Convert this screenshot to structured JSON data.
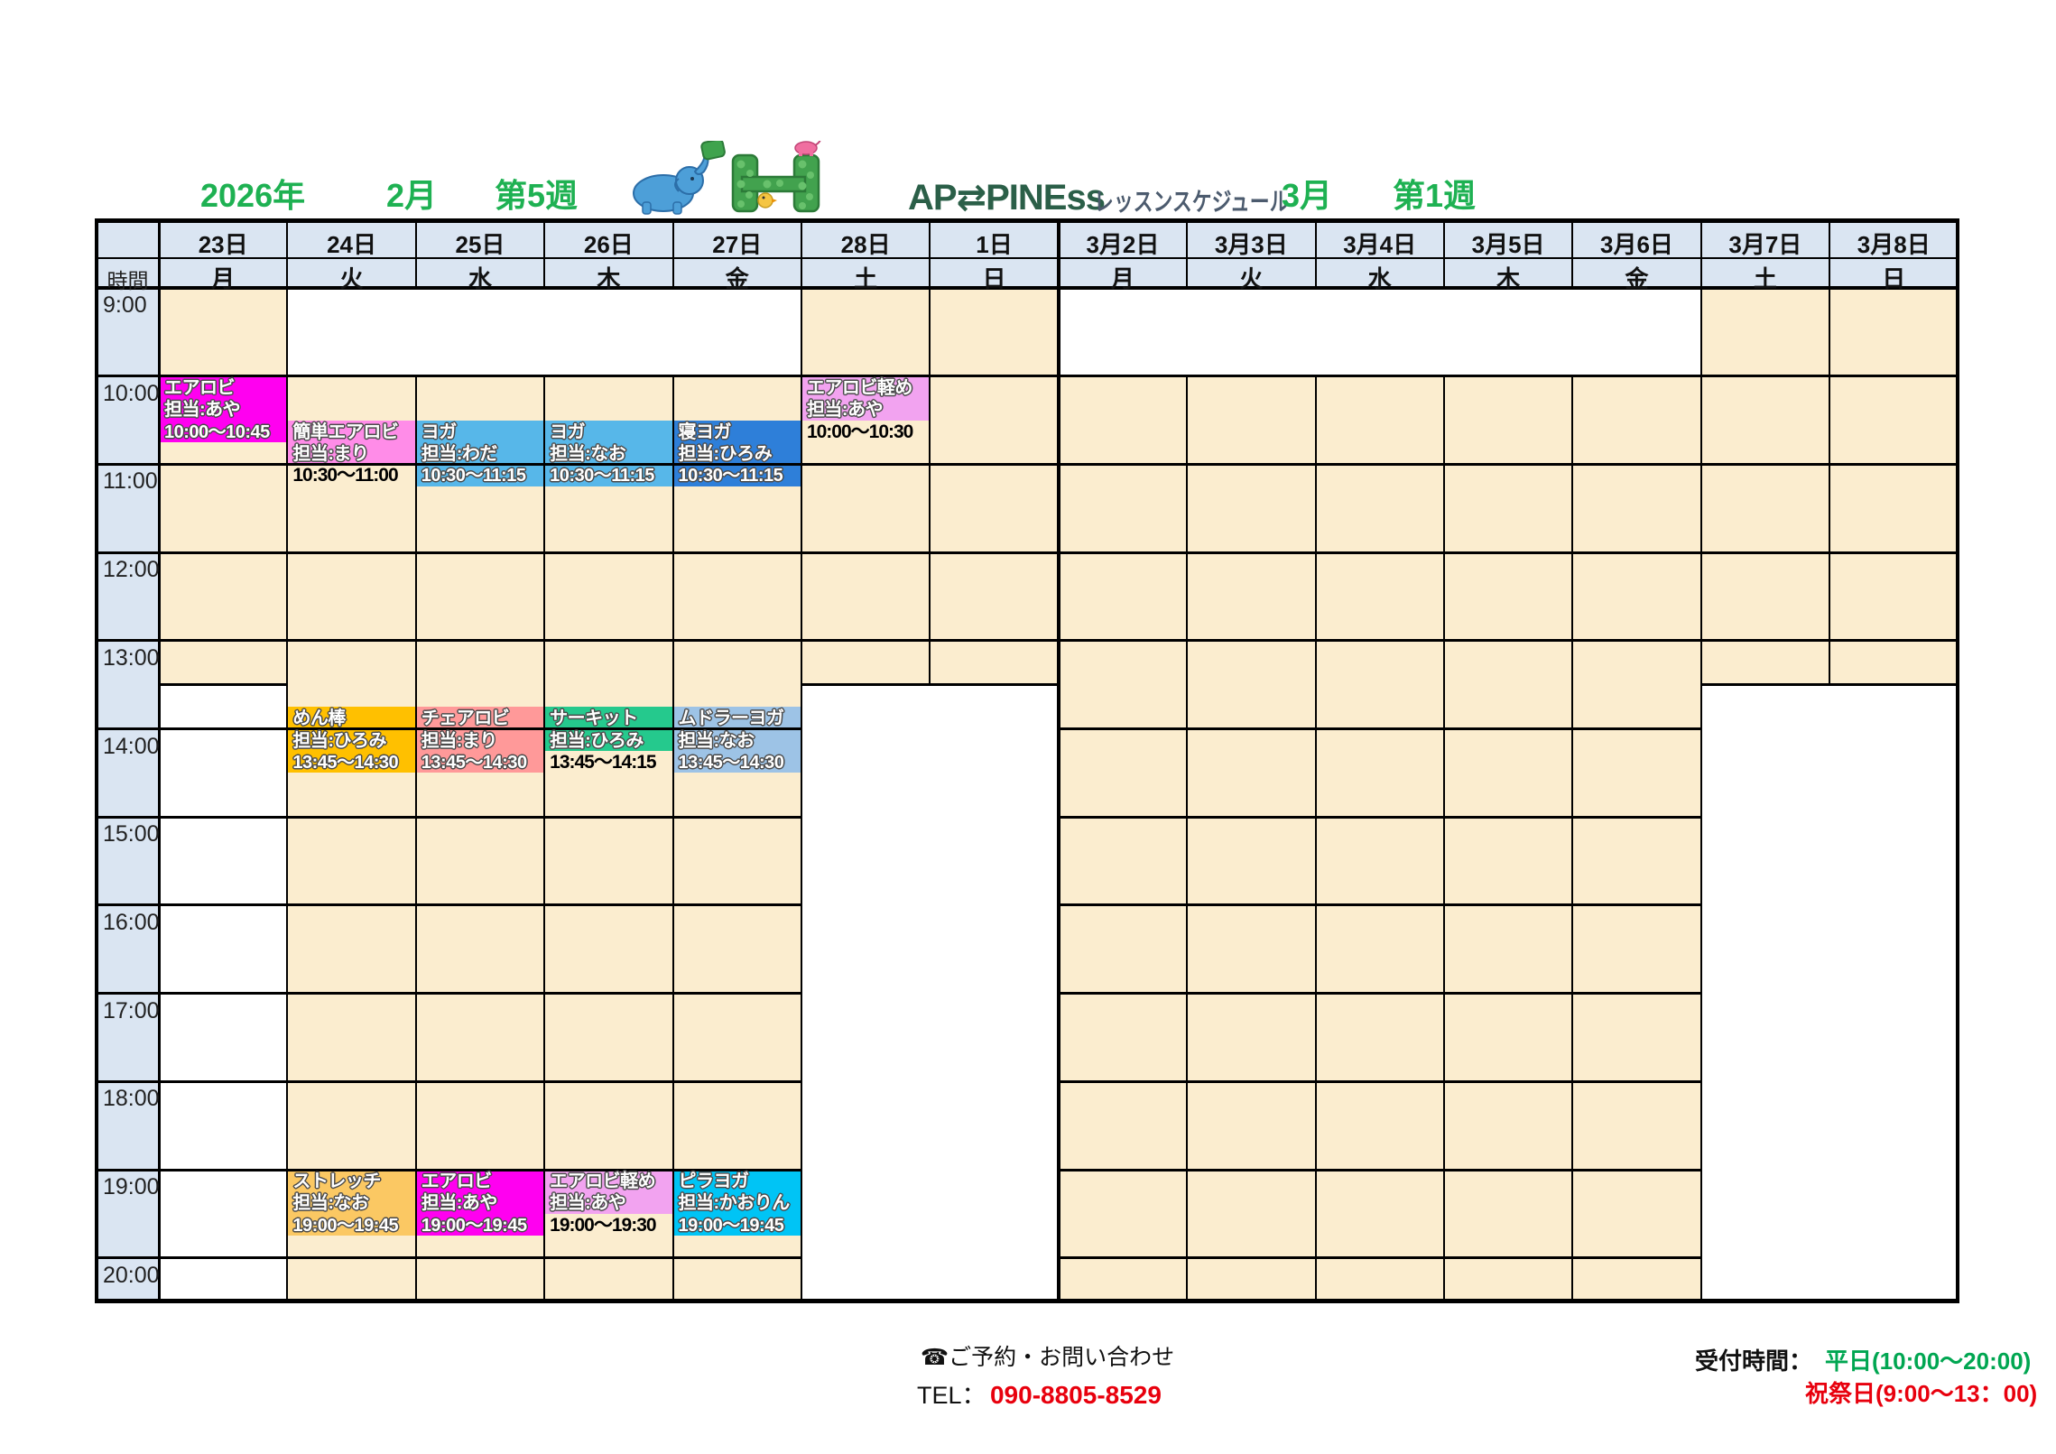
{
  "title": {
    "year": "2026年",
    "month_left": "2月",
    "week_left": "第5週",
    "logo_text": "AP⇄PINEss",
    "logo_subtitle": "レッスンスケジュール",
    "month_right": "3月",
    "week_right": "第1週"
  },
  "table": {
    "time_header": "時間",
    "hours": [
      "9:00",
      "10:00",
      "11:00",
      "12:00",
      "13:00",
      "14:00",
      "15:00",
      "16:00",
      "17:00",
      "18:00",
      "19:00",
      "20:00"
    ],
    "columns": [
      {
        "date": "23日",
        "day": "月",
        "pattern": "am"
      },
      {
        "date": "24日",
        "day": "火",
        "pattern": "pm"
      },
      {
        "date": "25日",
        "day": "水",
        "pattern": "pm"
      },
      {
        "date": "26日",
        "day": "木",
        "pattern": "pm"
      },
      {
        "date": "27日",
        "day": "金",
        "pattern": "pm"
      },
      {
        "date": "28日",
        "day": "土",
        "pattern": "am"
      },
      {
        "date": "1日",
        "day": "日",
        "pattern": "am"
      },
      {
        "date": "3月2日",
        "day": "月",
        "pattern": "pm"
      },
      {
        "date": "3月3日",
        "day": "火",
        "pattern": "pm"
      },
      {
        "date": "3月4日",
        "day": "水",
        "pattern": "pm"
      },
      {
        "date": "3月5日",
        "day": "木",
        "pattern": "pm"
      },
      {
        "date": "3月6日",
        "day": "金",
        "pattern": "pm"
      },
      {
        "date": "3月7日",
        "day": "土",
        "pattern": "am"
      },
      {
        "date": "3月8日",
        "day": "日",
        "pattern": "am"
      }
    ]
  },
  "lessons": [
    {
      "col": 0,
      "name": "エアロビ",
      "instructor": "担当:あや",
      "time": "10:00～10:45",
      "start": 60,
      "duration": 45,
      "color": "#FF00F0",
      "time_placement": "inside"
    },
    {
      "col": 1,
      "name": "簡単エアロビ",
      "instructor": "担当:まり",
      "time": "10:30～11:00",
      "start": 90,
      "duration": 30,
      "color": "#FF8CE8",
      "time_placement": "below"
    },
    {
      "col": 2,
      "name": "ヨガ",
      "instructor": "担当:わだ",
      "time": "10:30～11:15",
      "start": 90,
      "duration": 45,
      "color": "#57B7E9",
      "time_placement": "inside"
    },
    {
      "col": 3,
      "name": "ヨガ",
      "instructor": "担当:なお",
      "time": "10:30～11:15",
      "start": 90,
      "duration": 45,
      "color": "#57B7E9",
      "time_placement": "inside"
    },
    {
      "col": 4,
      "name": "寝ヨガ",
      "instructor": "担当:ひろみ",
      "time": "10:30～11:15",
      "start": 90,
      "duration": 45,
      "color": "#2E7FD9",
      "time_placement": "inside"
    },
    {
      "col": 5,
      "name": "エアロビ軽め",
      "instructor": "担当:あや",
      "time": "10:00～10:30",
      "start": 60,
      "duration": 30,
      "color": "#F2A3F0",
      "time_placement": "below"
    },
    {
      "col": 1,
      "name": "めん棒",
      "instructor": "担当:ひろみ",
      "time": "13:45～14:30",
      "start": 285,
      "duration": 45,
      "color": "#FFC000",
      "time_placement": "inside"
    },
    {
      "col": 2,
      "name": "チェアロビ",
      "instructor": "担当:まり",
      "time": "13:45～14:30",
      "start": 285,
      "duration": 45,
      "color": "#FF9999",
      "time_placement": "inside"
    },
    {
      "col": 3,
      "name": "サーキット",
      "instructor": "担当:ひろみ",
      "time": "13:45～14:15",
      "start": 285,
      "duration": 30,
      "color": "#25C98D",
      "time_placement": "below"
    },
    {
      "col": 4,
      "name": "ムドラーヨガ",
      "instructor": "担当:なお",
      "time": "13:45～14:30",
      "start": 285,
      "duration": 45,
      "color": "#9DC3E6",
      "time_placement": "inside"
    },
    {
      "col": 1,
      "name": "ストレッチ",
      "instructor": "担当:なお",
      "time": "19:00～19:45",
      "start": 600,
      "duration": 45,
      "color": "#FBC863",
      "time_placement": "inside"
    },
    {
      "col": 2,
      "name": "エアロビ",
      "instructor": "担当:あや",
      "time": "19:00～19:45",
      "start": 600,
      "duration": 45,
      "color": "#FF00F0",
      "time_placement": "inside"
    },
    {
      "col": 3,
      "name": "エアロビ軽め",
      "instructor": "担当:あや",
      "time": "19:00～19:30",
      "start": 600,
      "duration": 30,
      "color": "#F2A3F0",
      "time_placement": "below"
    },
    {
      "col": 4,
      "name": "ピラヨガ",
      "instructor": "担当:かおりん",
      "time": "19:00～19:45",
      "start": 600,
      "duration": 45,
      "color": "#00C4F5",
      "time_placement": "inside"
    }
  ],
  "footer": {
    "contact": "☎ご予約・お問い合わせ",
    "tel_label": "TEL：",
    "tel_number": "090-8805-8529",
    "reception_label": "受付時間：",
    "weekday_hours": "平日(10:00～20:00)",
    "holiday_hours": "祝祭日(9:00～13：00)"
  },
  "colors": {
    "beige": "#FBEDCF",
    "header_blue": "#DAE5F2",
    "title_green": "#1EB152",
    "weekday_green": "#00A651",
    "alert_red": "#E8000D",
    "grid_black": "#000000"
  }
}
